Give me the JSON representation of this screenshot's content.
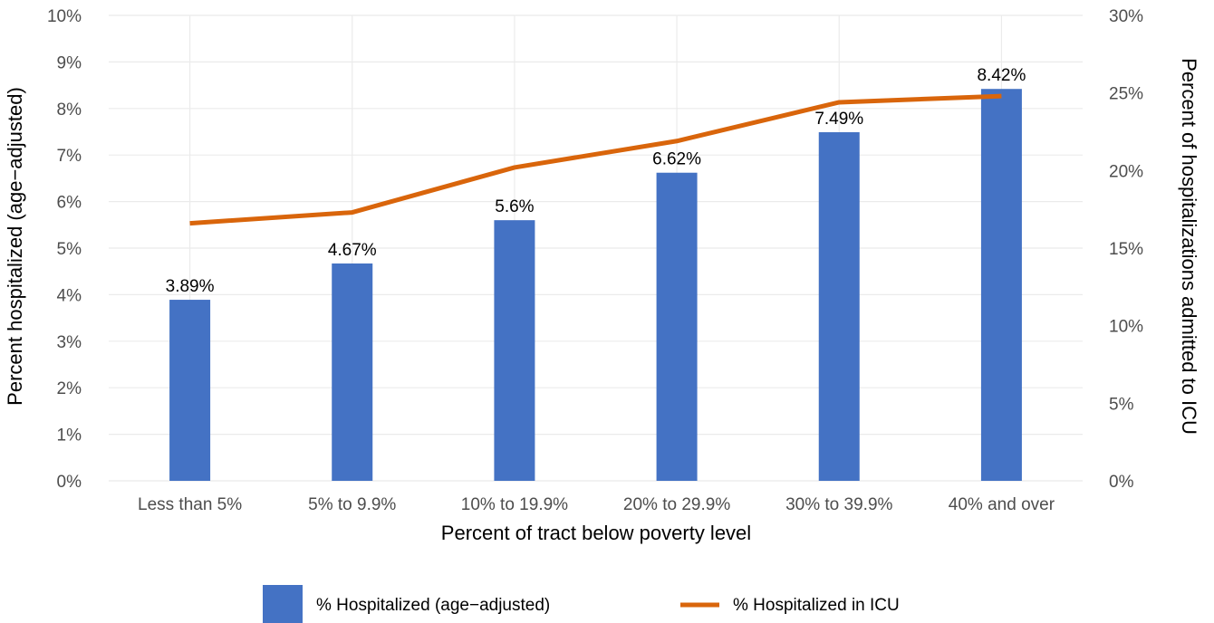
{
  "chart_data": {
    "type": "bar",
    "categories": [
      "Less than 5%",
      "5% to 9.9%",
      "10% to 19.9%",
      "20% to 29.9%",
      "30% to 39.9%",
      "40% and over"
    ],
    "series": [
      {
        "name": "% Hospitalized (age−adjusted)",
        "type": "bar",
        "axis": "left",
        "color": "#4472C4",
        "values": [
          3.89,
          4.67,
          5.6,
          6.62,
          7.49,
          8.42
        ],
        "labels": [
          "3.89%",
          "4.67%",
          "5.6%",
          "6.62%",
          "7.49%",
          "8.42%"
        ]
      },
      {
        "name": "% Hospitalized in ICU",
        "type": "line",
        "axis": "right",
        "color": "#D9650B",
        "values": [
          16.6,
          17.3,
          20.2,
          21.9,
          24.4,
          24.8
        ]
      }
    ],
    "xlabel": "Percent of tract below poverty level",
    "ylabel": "Percent hospitalized (age−adjusted)",
    "y2label": "Percent of hospitalizations admitted to ICU",
    "ylim": [
      0,
      10
    ],
    "y2lim": [
      0,
      30
    ],
    "yticks": [
      "0%",
      "1%",
      "2%",
      "3%",
      "4%",
      "5%",
      "6%",
      "7%",
      "8%",
      "9%",
      "10%"
    ],
    "y2ticks": [
      "0%",
      "5%",
      "10%",
      "15%",
      "20%",
      "25%",
      "30%"
    ],
    "grid": true,
    "legend": "bottom"
  }
}
